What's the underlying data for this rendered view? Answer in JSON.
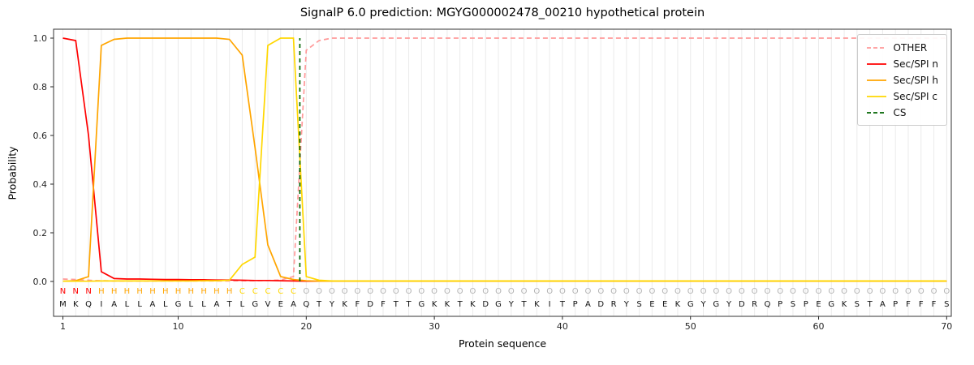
{
  "chart_data": {
    "type": "line",
    "title": "SignalP 6.0 prediction: MGYG000002478_00210 hypothetical protein",
    "xlabel": "Protein sequence",
    "ylabel": "Probability",
    "positions": 70,
    "xticks": [
      1,
      10,
      20,
      30,
      40,
      50,
      60,
      70
    ],
    "yticks": [
      0.0,
      0.2,
      0.4,
      0.6,
      0.8,
      1.0
    ],
    "ylim": [
      -0.15,
      1.05
    ],
    "grid": "vertical-per-position",
    "legend_position": "upper right",
    "colors": {
      "grid": "#ebebeb",
      "frame": "#333333",
      "tick_text": "#262626",
      "sequence_text": "#111111"
    },
    "series": [
      {
        "name": "OTHER",
        "color": "#ff9999",
        "dashed": true,
        "values": [
          0.01,
          0.008,
          0.005,
          0.003,
          0.002,
          0.002,
          0.002,
          0.002,
          0.002,
          0.002,
          0.002,
          0.002,
          0.002,
          0.002,
          0.003,
          0.003,
          0.004,
          0.006,
          0.02,
          0.95,
          0.99,
          1.0,
          1.0,
          1.0,
          1.0,
          1.0,
          1.0,
          1.0,
          1.0,
          1.0,
          1.0,
          1.0,
          1.0,
          1.0,
          1.0,
          1.0,
          1.0,
          1.0,
          1.0,
          1.0,
          1.0,
          1.0,
          1.0,
          1.0,
          1.0,
          1.0,
          1.0,
          1.0,
          1.0,
          1.0,
          1.0,
          1.0,
          1.0,
          1.0,
          1.0,
          1.0,
          1.0,
          1.0,
          1.0,
          1.0,
          1.0,
          1.0,
          1.0,
          1.0,
          1.0,
          1.0,
          1.0,
          1.0,
          1.0,
          1.0
        ]
      },
      {
        "name": "Sec/SPI n",
        "color": "#ff0000",
        "dashed": false,
        "values": [
          1.0,
          0.99,
          0.6,
          0.04,
          0.012,
          0.01,
          0.01,
          0.009,
          0.008,
          0.008,
          0.007,
          0.007,
          0.006,
          0.006,
          0.005,
          0.004,
          0.004,
          0.003,
          0.002,
          0.001,
          0.001,
          0.001,
          0.001,
          0.001,
          0.001,
          0.001,
          0.001,
          0.001,
          0.001,
          0.001,
          0.001,
          0.001,
          0.001,
          0.001,
          0.001,
          0.001,
          0.001,
          0.001,
          0.001,
          0.001,
          0.001,
          0.001,
          0.001,
          0.001,
          0.001,
          0.001,
          0.001,
          0.001,
          0.001,
          0.001,
          0.001,
          0.001,
          0.001,
          0.001,
          0.001,
          0.001,
          0.001,
          0.001,
          0.001,
          0.001,
          0.001,
          0.001,
          0.001,
          0.001,
          0.001,
          0.001,
          0.001,
          0.001,
          0.001,
          0.001
        ]
      },
      {
        "name": "Sec/SPI h",
        "color": "#ffa500",
        "dashed": false,
        "values": [
          0.001,
          0.003,
          0.02,
          0.97,
          0.995,
          1.0,
          1.0,
          1.0,
          1.0,
          1.0,
          1.0,
          1.0,
          1.0,
          0.995,
          0.93,
          0.55,
          0.15,
          0.02,
          0.008,
          0.003,
          0.001,
          0.001,
          0.001,
          0.001,
          0.001,
          0.001,
          0.001,
          0.001,
          0.001,
          0.001,
          0.001,
          0.001,
          0.001,
          0.001,
          0.001,
          0.001,
          0.001,
          0.001,
          0.001,
          0.001,
          0.001,
          0.001,
          0.001,
          0.001,
          0.001,
          0.001,
          0.001,
          0.001,
          0.001,
          0.001,
          0.001,
          0.001,
          0.001,
          0.001,
          0.001,
          0.001,
          0.001,
          0.001,
          0.001,
          0.001,
          0.001,
          0.001,
          0.001,
          0.001,
          0.001,
          0.001,
          0.001,
          0.001,
          0.001,
          0.001
        ]
      },
      {
        "name": "Sec/SPI c",
        "color": "#ffd700",
        "dashed": false,
        "values": [
          0.001,
          0.001,
          0.001,
          0.002,
          0.002,
          0.002,
          0.002,
          0.002,
          0.002,
          0.002,
          0.002,
          0.003,
          0.003,
          0.005,
          0.07,
          0.1,
          0.97,
          1.0,
          1.0,
          0.02,
          0.005,
          0.002,
          0.002,
          0.002,
          0.002,
          0.002,
          0.002,
          0.002,
          0.002,
          0.002,
          0.002,
          0.002,
          0.002,
          0.002,
          0.002,
          0.002,
          0.002,
          0.002,
          0.002,
          0.002,
          0.002,
          0.002,
          0.002,
          0.002,
          0.002,
          0.002,
          0.002,
          0.002,
          0.002,
          0.002,
          0.002,
          0.002,
          0.002,
          0.002,
          0.002,
          0.002,
          0.002,
          0.002,
          0.002,
          0.002,
          0.002,
          0.002,
          0.002,
          0.002,
          0.002,
          0.002,
          0.002,
          0.002,
          0.002,
          0.002
        ]
      }
    ],
    "cs_marker": {
      "name": "CS",
      "position": 19.5,
      "color": "#006400",
      "dashed": true
    },
    "sequence": "MKQIALLALGLLATLGVEAQTYKFDFTTGKKTKDGYTKITPADRYSEEKGYGYDRQPSPEGKSTAPFFFS",
    "regions": [
      {
        "label": "N",
        "color": "#ff0000",
        "start": 1,
        "end": 3
      },
      {
        "label": "H",
        "color": "#ffa500",
        "start": 4,
        "end": 14
      },
      {
        "label": "C",
        "color": "#ffd700",
        "start": 15,
        "end": 19
      },
      {
        "label": "O",
        "color": "#b3b3b3",
        "start": 20,
        "end": 70
      }
    ]
  }
}
